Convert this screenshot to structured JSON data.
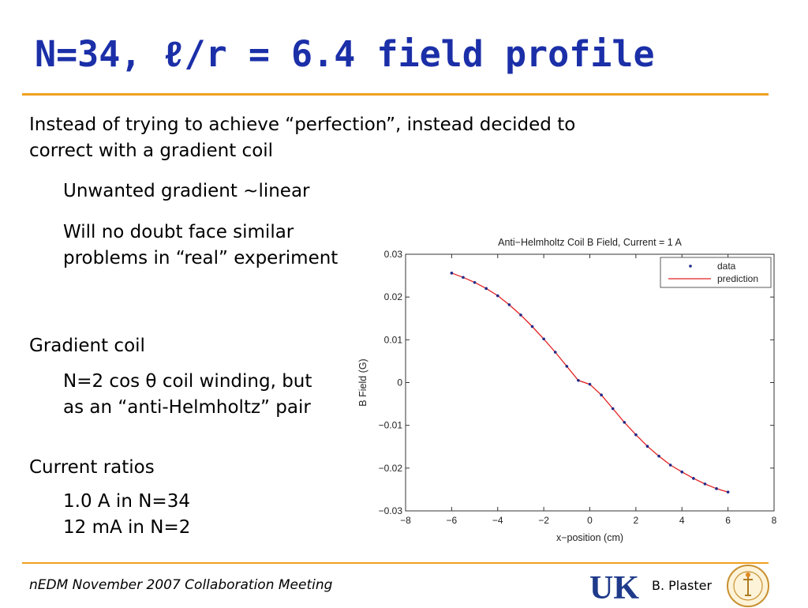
{
  "slide": {
    "title": "N=34, ℓ/r = 6.4 field profile",
    "bullets": [
      {
        "level": 1,
        "lines": [
          "Instead of trying to achieve “perfection”, instead decided to",
          "correct with a gradient coil"
        ]
      },
      {
        "level": 2,
        "lines": [
          "Unwanted gradient ~linear"
        ]
      },
      {
        "level": 2,
        "lines": [
          "Will no doubt face similar",
          "problems in “real” experiment"
        ]
      },
      {
        "level": 1,
        "lines": [
          "Gradient coil"
        ]
      },
      {
        "level": 2,
        "lines": [
          "N=2 cos θ coil winding, but",
          "as an “anti-Helmholtz” pair"
        ]
      },
      {
        "level": 1,
        "lines": [
          "Current ratios"
        ]
      },
      {
        "level": 2,
        "lines": [
          "1.0 A in N=34",
          "12 mA in N=2"
        ]
      }
    ]
  },
  "footer": {
    "left": "nEDM November 2007 Collaboration Meeting",
    "logo_text": "UK",
    "author": "B. Plaster"
  },
  "colors": {
    "title": "#1b2fa8",
    "rule": "#f0a020",
    "logo": "#1f3a8a",
    "data_marker": "#1f2a8a",
    "prediction_line": "#e02020"
  },
  "chart_data": {
    "type": "line",
    "title": "Anti−Helmholtz Coil B Field, Current = 1 A",
    "xlabel": "x−position (cm)",
    "ylabel": "B Field (G)",
    "xlim": [
      -8,
      8
    ],
    "ylim": [
      -0.03,
      0.03
    ],
    "xticks": [
      -8,
      -6,
      -4,
      -2,
      0,
      2,
      4,
      6,
      8
    ],
    "yticks": [
      -0.03,
      -0.02,
      -0.01,
      0,
      0.01,
      0.02,
      0.03
    ],
    "xtick_labels": [
      "−8",
      "−6",
      "−4",
      "−2",
      "0",
      "2",
      "4",
      "6",
      "8"
    ],
    "ytick_labels": [
      "−0.03",
      "−0.02",
      "−0.01",
      "0",
      "0.01",
      "0.02",
      "0.03"
    ],
    "grid": false,
    "legend": "top-right",
    "series": [
      {
        "name": "data",
        "style": "markers",
        "x": [
          -6,
          -5.5,
          -5,
          -4.5,
          -4,
          -3.5,
          -3,
          -2.5,
          -2,
          -1.5,
          -1,
          -0.5,
          0,
          0.5,
          1,
          1.5,
          2,
          2.5,
          3,
          3.5,
          4,
          4.5,
          5,
          5.5,
          6
        ],
        "y": [
          0.0256,
          0.0246,
          0.0234,
          0.022,
          0.0203,
          0.0182,
          0.0158,
          0.0131,
          0.0102,
          0.0071,
          0.0038,
          0.0005,
          -0.0004,
          -0.0029,
          -0.0061,
          -0.0093,
          -0.0122,
          -0.0149,
          -0.0172,
          -0.0193,
          -0.0209,
          -0.0224,
          -0.0237,
          -0.0248,
          -0.0256
        ]
      },
      {
        "name": "prediction",
        "style": "line",
        "x": [
          -6,
          -5.5,
          -5,
          -4.5,
          -4,
          -3.5,
          -3,
          -2.5,
          -2,
          -1.5,
          -1,
          -0.5,
          0,
          0.5,
          1,
          1.5,
          2,
          2.5,
          3,
          3.5,
          4,
          4.5,
          5,
          5.5,
          6
        ],
        "y": [
          0.0256,
          0.0246,
          0.0234,
          0.022,
          0.0203,
          0.0182,
          0.0158,
          0.0131,
          0.0102,
          0.0071,
          0.0038,
          0.0005,
          -0.0004,
          -0.0029,
          -0.0061,
          -0.0093,
          -0.0122,
          -0.0149,
          -0.0172,
          -0.0193,
          -0.0209,
          -0.0224,
          -0.0237,
          -0.0248,
          -0.0256
        ]
      }
    ]
  }
}
